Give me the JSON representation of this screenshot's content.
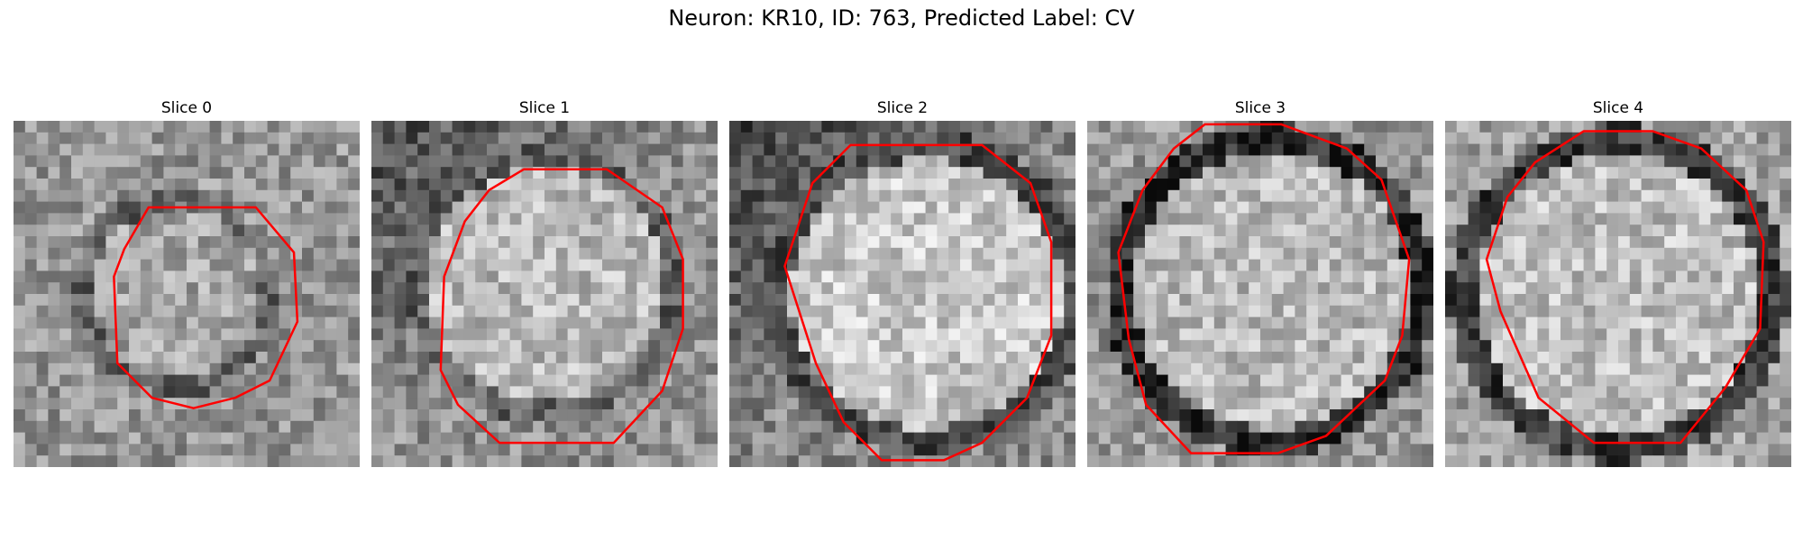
{
  "figure": {
    "suptitle": "Neuron: KR10, ID: 763, Predicted Label: CV",
    "contour_color": "#ff0000",
    "colormap": "gray",
    "slices": [
      {
        "title": "Slice 0"
      },
      {
        "title": "Slice 1"
      },
      {
        "title": "Slice 2"
      },
      {
        "title": "Slice 3"
      },
      {
        "title": "Slice 4"
      }
    ]
  }
}
